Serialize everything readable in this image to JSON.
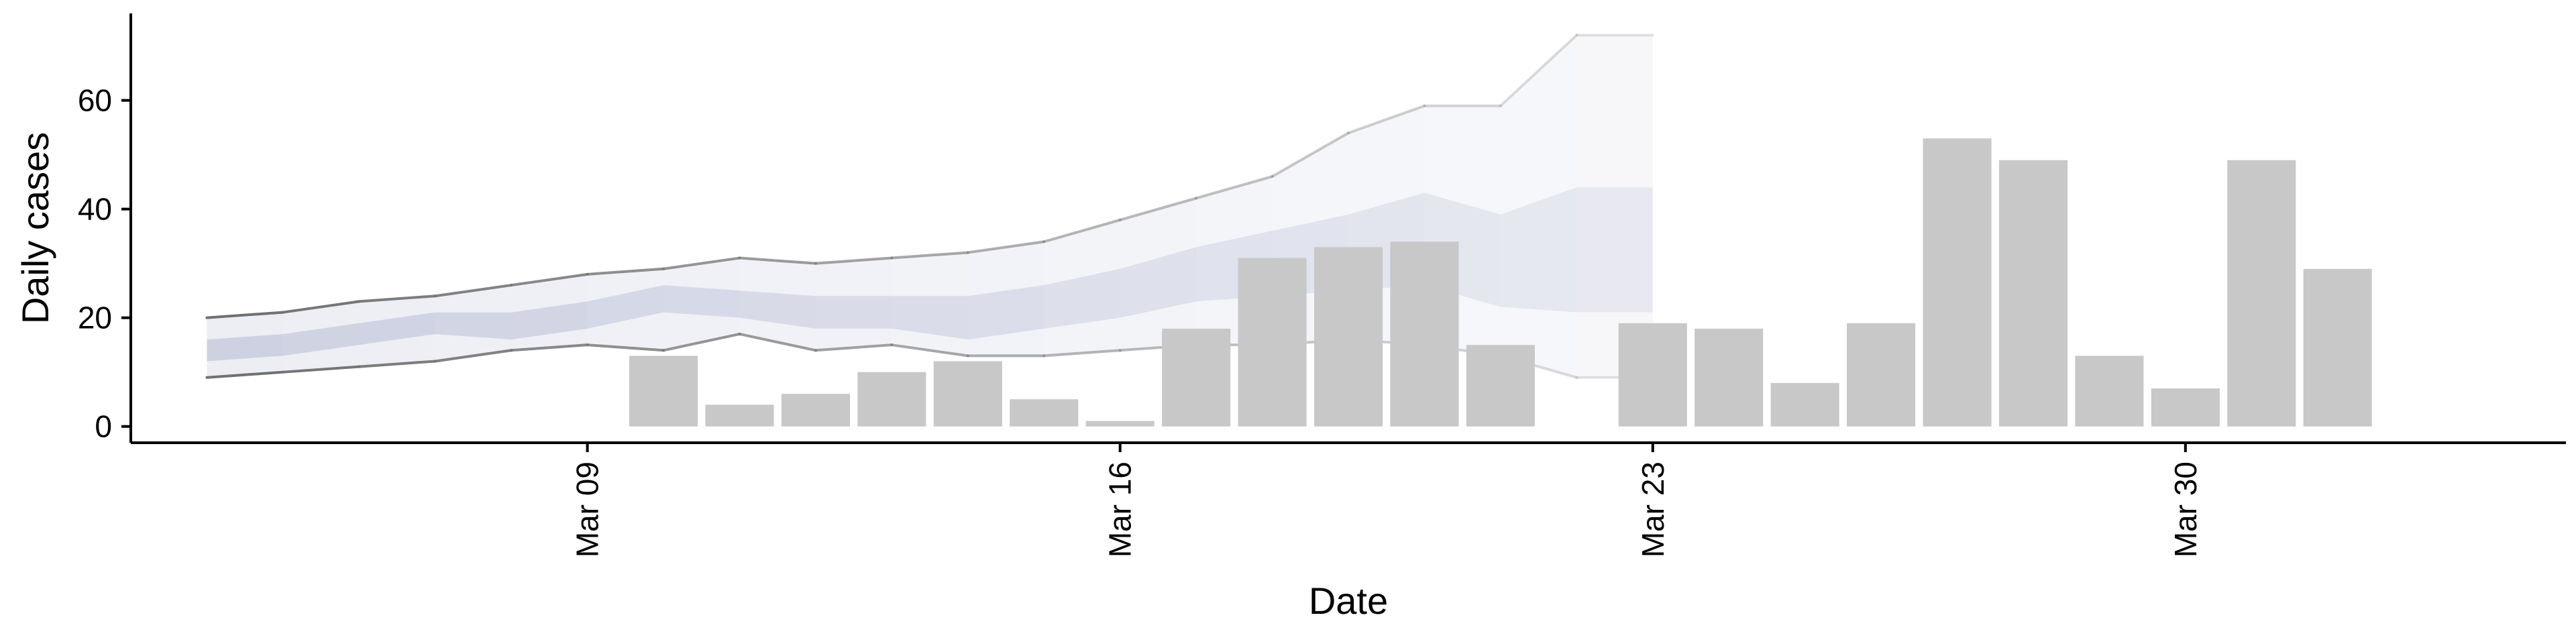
{
  "chart_data": {
    "type": "bar",
    "title": "",
    "xlabel": "Date",
    "ylabel": "Daily cases",
    "x_tick_labels": [
      {
        "label": "Mar 09",
        "date": "2020-03-09"
      },
      {
        "label": "Mar 16",
        "date": "2020-03-16"
      },
      {
        "label": "Mar 23",
        "date": "2020-03-23"
      },
      {
        "label": "Mar 30",
        "date": "2020-03-30"
      }
    ],
    "y_ticks": [
      0,
      20,
      40,
      60
    ],
    "xlim": [
      "2020-03-03",
      "2020-04-04"
    ],
    "ylim": [
      -3,
      76
    ],
    "grid": false,
    "legend": "none",
    "series": [
      {
        "type": "bar",
        "x": [
          "2020-03-10",
          "2020-03-11",
          "2020-03-12",
          "2020-03-13",
          "2020-03-14",
          "2020-03-15",
          "2020-03-16",
          "2020-03-17",
          "2020-03-18",
          "2020-03-19",
          "2020-03-20",
          "2020-03-21",
          "2020-03-23",
          "2020-03-24",
          "2020-03-25",
          "2020-03-26",
          "2020-03-27",
          "2020-03-28",
          "2020-03-29",
          "2020-03-30",
          "2020-03-31",
          "2020-04-01"
        ],
        "values": [
          13,
          4,
          6,
          10,
          12,
          5,
          1,
          18,
          31,
          33,
          34,
          15,
          19,
          18,
          8,
          19,
          53,
          49,
          13,
          7,
          49,
          29
        ],
        "color": "#c8c8c8"
      },
      {
        "type": "band",
        "x": [
          "2020-03-04",
          "2020-03-05",
          "2020-03-06",
          "2020-03-07",
          "2020-03-08",
          "2020-03-09",
          "2020-03-10",
          "2020-03-11",
          "2020-03-12",
          "2020-03-13",
          "2020-03-14",
          "2020-03-15",
          "2020-03-16",
          "2020-03-17",
          "2020-03-18",
          "2020-03-19",
          "2020-03-20",
          "2020-03-21",
          "2020-03-22",
          "2020-03-23"
        ],
        "lower": [
          9,
          10,
          11,
          12,
          14,
          15,
          14,
          17,
          14,
          15,
          13,
          13,
          14,
          15,
          15,
          16,
          15,
          13,
          9,
          9
        ],
        "upper": [
          20,
          21,
          23,
          24,
          26,
          28,
          29,
          31,
          30,
          31,
          32,
          34,
          38,
          42,
          46,
          54,
          59,
          59,
          72,
          72
        ],
        "inner_lower": [
          12,
          13,
          15,
          17,
          16,
          18,
          21,
          20,
          18,
          18,
          16,
          18,
          20,
          23,
          24,
          25,
          26,
          22,
          21,
          21
        ],
        "inner_upper": [
          16,
          17,
          19,
          21,
          21,
          23,
          26,
          25,
          24,
          24,
          24,
          26,
          29,
          33,
          36,
          39,
          43,
          39,
          44,
          44
        ],
        "color": "#7e87b3",
        "outline_color": "#707070"
      }
    ]
  }
}
